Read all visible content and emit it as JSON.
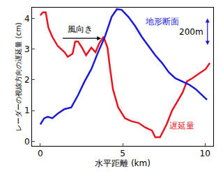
{
  "chart_data": {
    "type": "line",
    "x_label": "水平距離 (km)",
    "y_label": "レーダーの視線方向の遅延量 (cm)",
    "xlim": [
      -0.5,
      10.5
    ],
    "xticks": [
      0,
      5,
      10
    ],
    "ylim": [
      -0.15,
      4.35
    ],
    "yticks": [
      0,
      1,
      2,
      3,
      4
    ],
    "grid": false,
    "series": [
      {
        "name": "遅延量",
        "color": "#e8141e",
        "x": [
          0,
          0.16,
          0.33,
          0.49,
          0.73,
          1.06,
          1.47,
          1.67,
          1.96,
          2.12,
          2.29,
          2.53,
          2.78,
          3.1,
          3.35,
          3.59,
          3.84,
          4.08,
          4.24,
          4.41,
          4.73,
          5.14,
          5.55,
          5.96,
          6.37,
          6.78,
          6.98,
          7.27,
          7.67,
          8.0,
          8.33,
          8.65,
          8.9,
          9.22,
          9.63,
          10.04,
          10.29
        ],
        "values": [
          4.1,
          4.2,
          4.2,
          3.7,
          3.4,
          3.1,
          2.9,
          2.75,
          2.85,
          3.25,
          3.25,
          3.05,
          2.8,
          3.05,
          2.9,
          3.2,
          3.4,
          3.05,
          2.35,
          1.7,
          1.1,
          0.75,
          0.65,
          0.6,
          0.45,
          0.35,
          0.13,
          0.13,
          0.55,
          1.0,
          1.3,
          1.6,
          1.95,
          2.05,
          2.2,
          2.35,
          2.55
        ]
      },
      {
        "name": "地形断面",
        "color": "#1a1ad6",
        "x": [
          0,
          0.24,
          0.45,
          0.73,
          1.06,
          1.47,
          1.88,
          2.29,
          2.69,
          3.1,
          3.51,
          3.92,
          4.33,
          4.65,
          4.94,
          5.35,
          5.76,
          6.16,
          6.57,
          6.98,
          7.39,
          7.8,
          8.2,
          8.61,
          9.02,
          9.43,
          9.84,
          10.12
        ],
        "values": [
          0.55,
          0.75,
          0.8,
          0.75,
          0.9,
          1.05,
          1.1,
          1.5,
          1.95,
          2.35,
          2.9,
          3.4,
          4.05,
          4.3,
          4.28,
          4.05,
          3.75,
          3.4,
          3.1,
          2.8,
          2.55,
          2.25,
          2.05,
          1.95,
          1.85,
          1.7,
          1.5,
          1.35
        ]
      }
    ],
    "annotations": [
      "風向き",
      "200m"
    ]
  }
}
